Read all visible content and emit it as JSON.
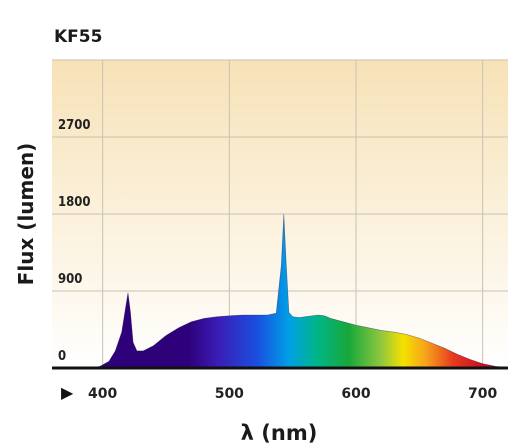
{
  "chart_data": {
    "type": "area",
    "title": "KF55",
    "xlabel": "λ (nm)",
    "ylabel": "Flux (lumen)",
    "xlim": [
      360,
      720
    ],
    "ylim": [
      0,
      3600
    ],
    "x_ticks": [
      400,
      500,
      600,
      700
    ],
    "y_ticks": [
      0,
      900,
      1800,
      2700
    ],
    "x_tick_labels": [
      "400",
      "500",
      "600",
      "700"
    ],
    "y_tick_labels": [
      "0",
      "900",
      "1800",
      "2700"
    ],
    "axis_marker": "▶",
    "grid": true,
    "background_gradient": [
      "#f7e2b7",
      "#ffffff"
    ],
    "series": [
      {
        "x": [
          390,
          398,
          405,
          410,
          415,
          418,
          420,
          422,
          424,
          427,
          432,
          440,
          450,
          460,
          470,
          480,
          490,
          500,
          510,
          520,
          530,
          537,
          541,
          543,
          545,
          547,
          550,
          555,
          560,
          570,
          575,
          580,
          590,
          600,
          610,
          620,
          630,
          640,
          650,
          660,
          670,
          680,
          690,
          700,
          710,
          720
        ],
        "y": [
          0,
          20,
          80,
          200,
          420,
          700,
          880,
          650,
          300,
          200,
          200,
          260,
          380,
          470,
          540,
          580,
          600,
          610,
          620,
          620,
          620,
          640,
          1200,
          1800,
          1200,
          650,
          600,
          590,
          600,
          620,
          610,
          580,
          540,
          500,
          470,
          440,
          420,
          390,
          350,
          290,
          230,
          160,
          100,
          50,
          20,
          5
        ]
      }
    ]
  }
}
